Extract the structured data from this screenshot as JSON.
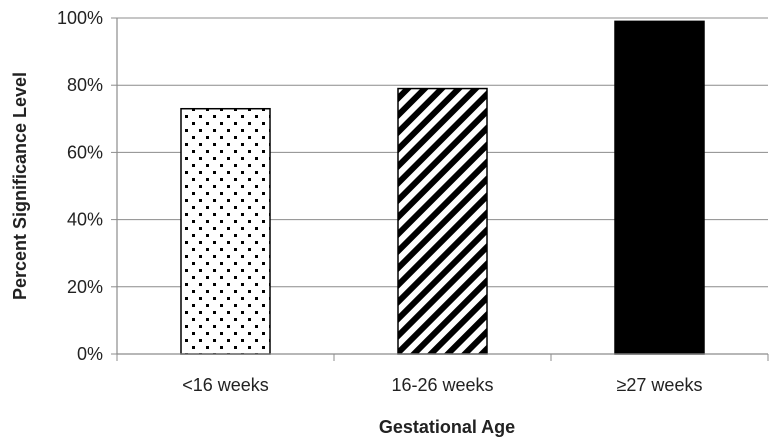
{
  "chart_data": {
    "type": "bar",
    "categories": [
      "<16 weeks",
      "16-26 weeks",
      "≥27 weeks"
    ],
    "values": [
      73,
      79,
      99
    ],
    "bar_patterns": [
      "dotted",
      "diagonal-stripes",
      "solid"
    ],
    "title": "",
    "xlabel": "Gestational Age",
    "ylabel": "Percent Significance Level",
    "ylim": [
      0,
      100
    ],
    "yticks": [
      0,
      20,
      40,
      60,
      80,
      100
    ],
    "ytick_labels": [
      "0%",
      "20%",
      "40%",
      "60%",
      "80%",
      "100%"
    ],
    "grid": true,
    "legend": "none",
    "colors": {
      "bar_fill": "#000000",
      "bar_background": "#ffffff",
      "grid": "#8c8c8c",
      "axis": "#8c8c8c",
      "text": "#222222"
    }
  }
}
